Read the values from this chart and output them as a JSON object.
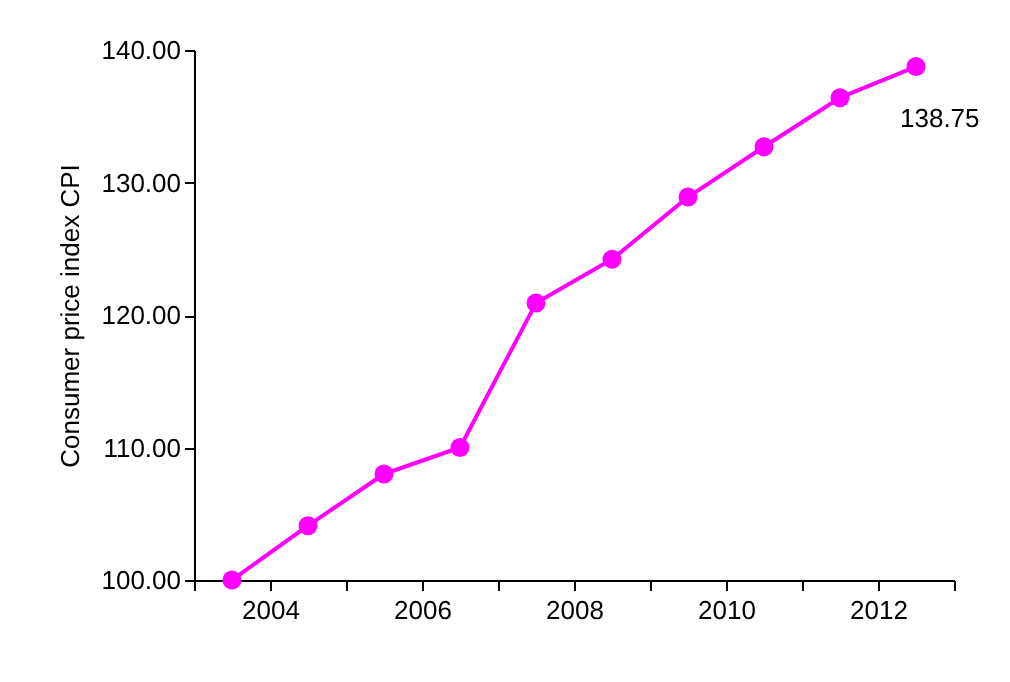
{
  "chart_data": {
    "type": "line",
    "ylabel": "Consumer price index CPI",
    "x": [
      2003.5,
      2004.5,
      2005.5,
      2006.5,
      2007.5,
      2008.5,
      2009.5,
      2010.5,
      2011.5,
      2012.5
    ],
    "values": [
      100.0,
      104.1,
      108.0,
      110.0,
      120.9,
      124.2,
      128.9,
      132.7,
      136.4,
      138.75
    ],
    "value_labels": [
      null,
      null,
      null,
      null,
      null,
      null,
      null,
      null,
      null,
      "138.75"
    ],
    "color": "#ff00ff",
    "marker": "circle",
    "line_style": "solid",
    "grid": false,
    "xlim": [
      2003,
      2013
    ],
    "xticks": [
      {
        "value": 2003,
        "label": null
      },
      2004,
      {
        "value": 2005,
        "label": null
      },
      2006,
      {
        "value": 2007,
        "label": null
      },
      2008,
      {
        "value": 2009,
        "label": null
      },
      2010,
      {
        "value": 2011,
        "label": null
      },
      2012,
      {
        "value": 2013,
        "label": null
      }
    ],
    "ylim": [
      100,
      140
    ],
    "yticks": [
      {
        "value": 100,
        "label": "100.00"
      },
      {
        "value": 110,
        "label": "110.00"
      },
      {
        "value": 120,
        "label": "120.00"
      },
      {
        "value": 130,
        "label": "130.00"
      },
      {
        "value": 140,
        "label": "140.00"
      }
    ]
  }
}
